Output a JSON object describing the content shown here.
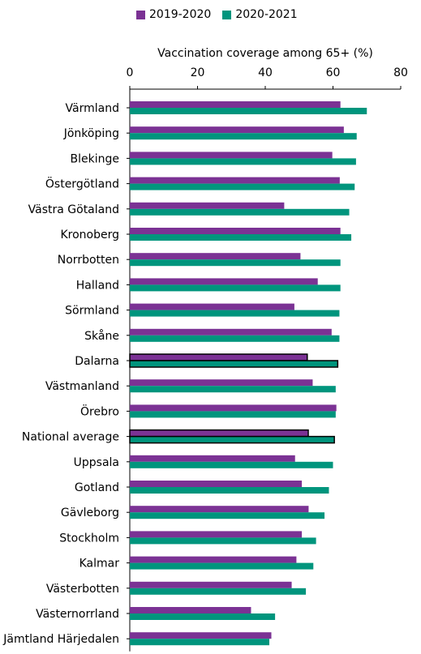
{
  "chart_data": {
    "type": "bar",
    "orientation": "horizontal",
    "xlabel": "Vaccination coverage among 65+ (%)",
    "xlim": [
      0,
      80
    ],
    "xticks": [
      0,
      20,
      40,
      60,
      80
    ],
    "grid": false,
    "legend_position": "top",
    "colors": {
      "2019-2020": "#7b3294",
      "2020-2021": "#00957d"
    },
    "categories": [
      "Värmland",
      "Jönköping",
      "Blekinge",
      "Östergötland",
      "Västra Götaland",
      "Kronoberg",
      "Norrbotten",
      "Halland",
      "Sörmland",
      "Skåne",
      "Dalarna",
      "Västmanland",
      "Örebro",
      "National average",
      "Uppsala",
      "Gotland",
      "Gävleborg",
      "Stockholm",
      "Kalmar",
      "Västerbotten",
      "Västernorrland",
      "Jämtland Härjedalen"
    ],
    "highlighted_categories": [
      "Dalarna",
      "National average"
    ],
    "series": [
      {
        "name": "2019-2020",
        "values": [
          62.2,
          63.2,
          59.8,
          62.0,
          45.6,
          62.2,
          50.4,
          55.5,
          48.6,
          59.6,
          52.4,
          54.0,
          61.0,
          52.7,
          48.8,
          50.8,
          52.8,
          50.8,
          49.2,
          47.8,
          35.8,
          41.8
        ]
      },
      {
        "name": "2020-2021",
        "values": [
          70.0,
          67.0,
          66.8,
          66.4,
          64.8,
          65.4,
          62.2,
          62.2,
          61.9,
          61.9,
          61.4,
          60.8,
          60.8,
          60.4,
          60.0,
          58.8,
          57.5,
          55.0,
          54.2,
          52.0,
          42.9,
          41.2
        ]
      }
    ]
  }
}
